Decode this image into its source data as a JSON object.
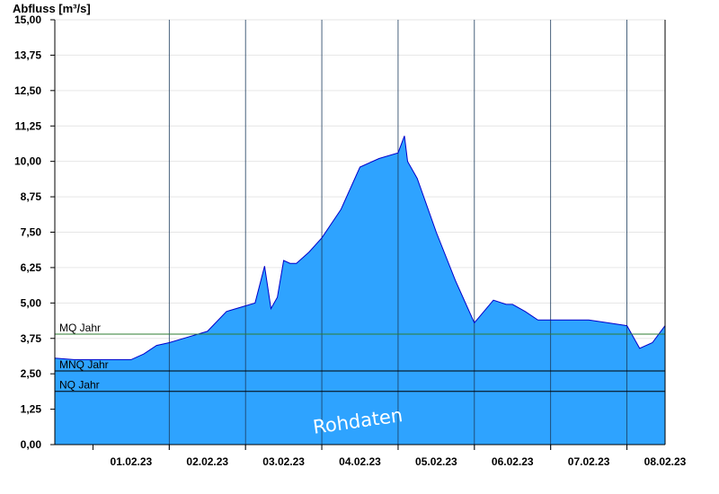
{
  "chart_data": {
    "type": "area",
    "title": "",
    "ylabel": "Abfluss [m³/s]",
    "xlabel": "",
    "ylim": [
      0,
      15
    ],
    "xlim": [
      "2023-01-31T12:00",
      "2023-02-08T12:00"
    ],
    "y_ticks": [
      "0,00",
      "1,25",
      "2,50",
      "3,75",
      "5,00",
      "6,25",
      "7,50",
      "8,75",
      "10,00",
      "11,25",
      "12,50",
      "13,75",
      "15,00"
    ],
    "x_ticks": [
      "01.02.23",
      "02.02.23",
      "03.02.23",
      "04.02.23",
      "05.02.23",
      "06.02.23",
      "07.02.23",
      "08.02.23"
    ],
    "grid": true,
    "fill_color": "#2ea3ff",
    "line_color": "#0000cc",
    "reference_lines": [
      {
        "label": "MQ Jahr",
        "value": 3.9,
        "color": "#2e7d32"
      },
      {
        "label": "MNQ Jahr",
        "value": 2.6,
        "color": "#000000"
      },
      {
        "label": "NQ Jahr",
        "value": 1.88,
        "color": "#000000"
      }
    ],
    "watermark": "Rohdaten",
    "series": [
      {
        "x": [
          "2023-01-31T12:00",
          "2023-01-31T18:00",
          "2023-02-01T00:00",
          "2023-02-01T06:00",
          "2023-02-01T12:00",
          "2023-02-01T16:00",
          "2023-02-01T20:00",
          "2023-02-02T00:00",
          "2023-02-02T06:00",
          "2023-02-02T12:00",
          "2023-02-02T18:00",
          "2023-02-03T00:00",
          "2023-02-03T03:00",
          "2023-02-03T06:00",
          "2023-02-03T08:00",
          "2023-02-03T10:00",
          "2023-02-03T12:00",
          "2023-02-03T14:00",
          "2023-02-03T16:00",
          "2023-02-03T20:00",
          "2023-02-04T00:00",
          "2023-02-04T06:00",
          "2023-02-04T12:00",
          "2023-02-04T18:00",
          "2023-02-05T00:00",
          "2023-02-05T02:00",
          "2023-02-05T03:00",
          "2023-02-05T06:00",
          "2023-02-05T12:00",
          "2023-02-05T18:00",
          "2023-02-06T00:00",
          "2023-02-06T06:00",
          "2023-02-06T10:00",
          "2023-02-06T12:00",
          "2023-02-06T16:00",
          "2023-02-06T20:00",
          "2023-02-07T00:00",
          "2023-02-07T06:00",
          "2023-02-07T12:00",
          "2023-02-07T18:00",
          "2023-02-08T00:00",
          "2023-02-08T04:00",
          "2023-02-08T08:00",
          "2023-02-08T12:00"
        ],
        "y": [
          3.05,
          3.0,
          3.0,
          3.0,
          3.0,
          3.2,
          3.5,
          3.6,
          3.8,
          4.0,
          4.7,
          4.9,
          5.0,
          6.3,
          4.8,
          5.2,
          6.5,
          6.4,
          6.4,
          6.8,
          7.3,
          8.3,
          9.8,
          10.1,
          10.3,
          10.9,
          10.0,
          9.4,
          7.5,
          5.8,
          4.3,
          5.1,
          4.95,
          4.95,
          4.7,
          4.4,
          4.4,
          4.4,
          4.4,
          4.3,
          4.2,
          3.4,
          3.6,
          4.2
        ]
      }
    ]
  }
}
